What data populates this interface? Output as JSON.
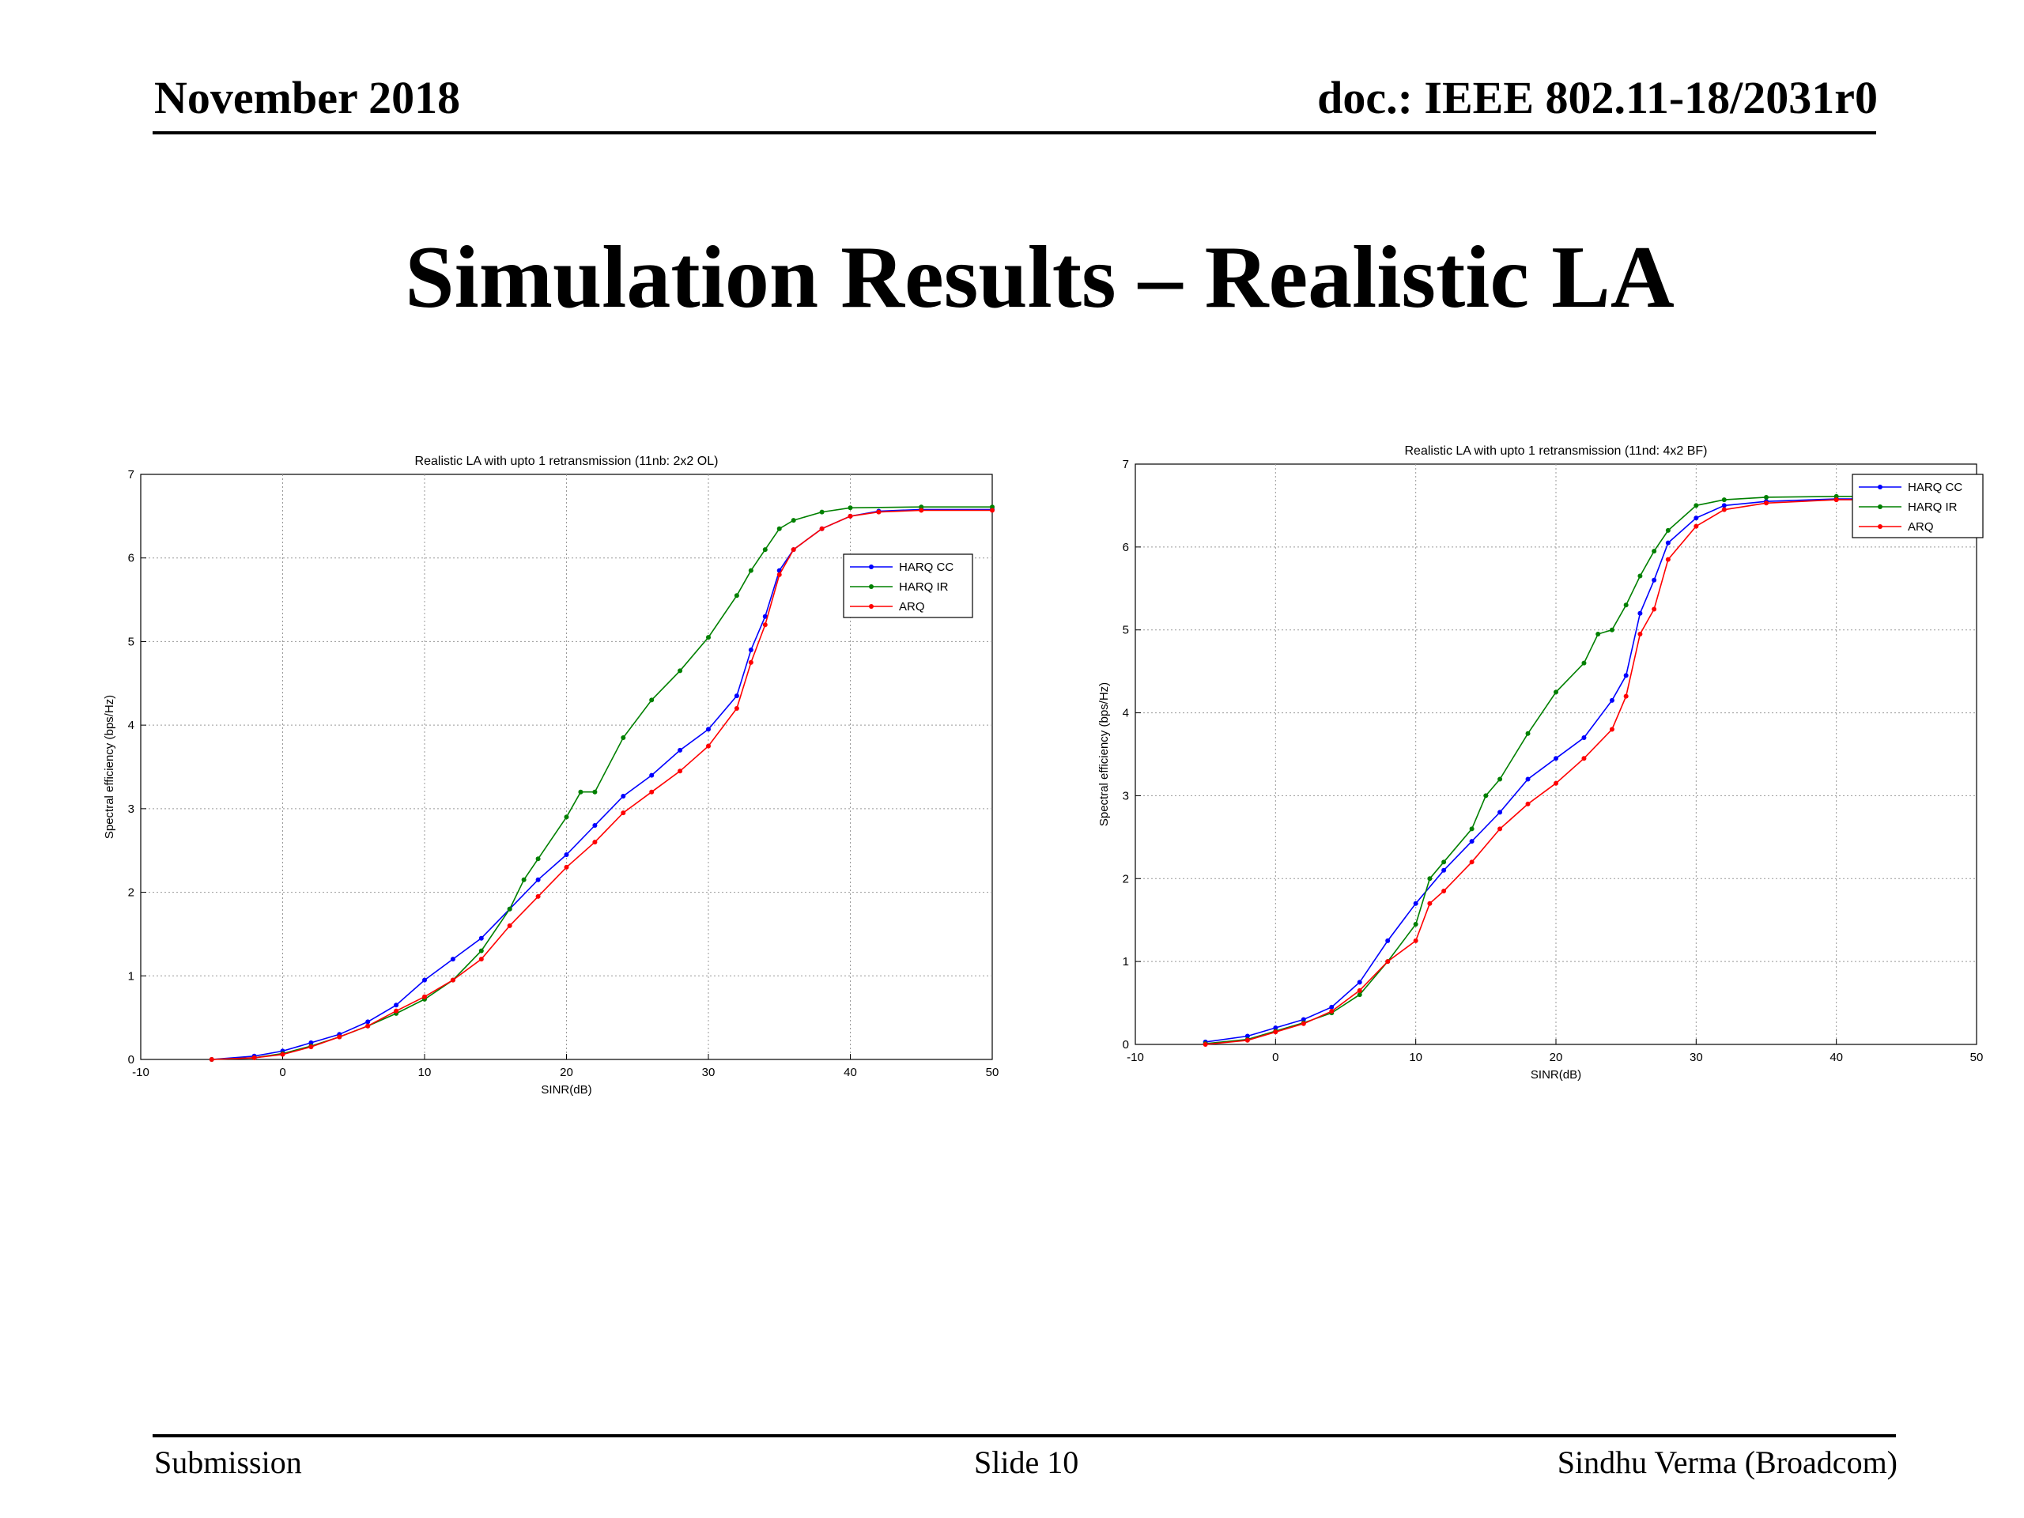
{
  "header": {
    "date": "November 2018",
    "doc": "doc.: IEEE 802.11-18/2031r0"
  },
  "slide_title": "Simulation Results – Realistic LA",
  "footer": {
    "left": "Submission",
    "center": "Slide 10",
    "right": "Sindhu Verma (Broadcom)"
  },
  "colors": {
    "HARQ CC": "#0000ff",
    "HARQ IR": "#008000",
    "ARQ": "#ff0000"
  },
  "chart_data": [
    {
      "type": "line",
      "title": "Realistic LA with upto 1 retransmission (11nb: 2x2 OL)",
      "xlabel": "SINR(dB)",
      "ylabel": "Spectral efficiency (bps/Hz)",
      "xlim": [
        -10,
        50
      ],
      "ylim": [
        0,
        7
      ],
      "xticks": [
        -10,
        0,
        10,
        20,
        30,
        40,
        50
      ],
      "yticks": [
        0,
        1,
        2,
        3,
        4,
        5,
        6,
        7
      ],
      "grid": true,
      "legend_position": "top-right",
      "series": [
        {
          "name": "HARQ CC",
          "points": [
            [
              -5,
              0
            ],
            [
              -2,
              0.04
            ],
            [
              0,
              0.1
            ],
            [
              2,
              0.2
            ],
            [
              4,
              0.3
            ],
            [
              6,
              0.45
            ],
            [
              8,
              0.65
            ],
            [
              10,
              0.95
            ],
            [
              12,
              1.2
            ],
            [
              14,
              1.45
            ],
            [
              16,
              1.8
            ],
            [
              18,
              2.15
            ],
            [
              20,
              2.45
            ],
            [
              22,
              2.8
            ],
            [
              24,
              3.15
            ],
            [
              26,
              3.4
            ],
            [
              28,
              3.7
            ],
            [
              30,
              3.95
            ],
            [
              32,
              4.35
            ],
            [
              33,
              4.9
            ],
            [
              34,
              5.3
            ],
            [
              35,
              5.85
            ],
            [
              36,
              6.1
            ],
            [
              38,
              6.35
            ],
            [
              40,
              6.5
            ],
            [
              42,
              6.56
            ],
            [
              45,
              6.58
            ],
            [
              50,
              6.58
            ]
          ]
        },
        {
          "name": "HARQ IR",
          "points": [
            [
              -5,
              0
            ],
            [
              -2,
              0.02
            ],
            [
              0,
              0.07
            ],
            [
              2,
              0.16
            ],
            [
              4,
              0.27
            ],
            [
              6,
              0.4
            ],
            [
              8,
              0.55
            ],
            [
              10,
              0.72
            ],
            [
              12,
              0.95
            ],
            [
              14,
              1.3
            ],
            [
              16,
              1.8
            ],
            [
              17,
              2.15
            ],
            [
              18,
              2.4
            ],
            [
              20,
              2.9
            ],
            [
              21,
              3.2
            ],
            [
              22,
              3.2
            ],
            [
              24,
              3.85
            ],
            [
              26,
              4.3
            ],
            [
              28,
              4.65
            ],
            [
              30,
              5.05
            ],
            [
              32,
              5.55
            ],
            [
              33,
              5.85
            ],
            [
              34,
              6.1
            ],
            [
              35,
              6.35
            ],
            [
              36,
              6.45
            ],
            [
              38,
              6.55
            ],
            [
              40,
              6.6
            ],
            [
              45,
              6.61
            ],
            [
              50,
              6.61
            ]
          ]
        },
        {
          "name": "ARQ",
          "points": [
            [
              -5,
              0
            ],
            [
              -2,
              0.02
            ],
            [
              0,
              0.06
            ],
            [
              2,
              0.15
            ],
            [
              4,
              0.27
            ],
            [
              6,
              0.4
            ],
            [
              8,
              0.58
            ],
            [
              10,
              0.75
            ],
            [
              12,
              0.95
            ],
            [
              14,
              1.2
            ],
            [
              16,
              1.6
            ],
            [
              18,
              1.95
            ],
            [
              20,
              2.3
            ],
            [
              22,
              2.6
            ],
            [
              24,
              2.95
            ],
            [
              26,
              3.2
            ],
            [
              28,
              3.45
            ],
            [
              30,
              3.75
            ],
            [
              32,
              4.2
            ],
            [
              33,
              4.75
            ],
            [
              34,
              5.2
            ],
            [
              35,
              5.8
            ],
            [
              36,
              6.1
            ],
            [
              38,
              6.35
            ],
            [
              40,
              6.5
            ],
            [
              42,
              6.55
            ],
            [
              45,
              6.57
            ],
            [
              50,
              6.57
            ]
          ]
        }
      ]
    },
    {
      "type": "line",
      "title": "Realistic LA with upto 1 retransmission (11nd: 4x2 BF)",
      "xlabel": "SINR(dB)",
      "ylabel": "Spectral efficiency (bps/Hz)",
      "xlim": [
        -10,
        50
      ],
      "ylim": [
        0,
        7
      ],
      "xticks": [
        -10,
        0,
        10,
        20,
        30,
        40,
        50
      ],
      "yticks": [
        0,
        1,
        2,
        3,
        4,
        5,
        6,
        7
      ],
      "grid": true,
      "legend_position": "top-right",
      "series": [
        {
          "name": "HARQ CC",
          "points": [
            [
              -5,
              0.03
            ],
            [
              -2,
              0.1
            ],
            [
              0,
              0.2
            ],
            [
              2,
              0.3
            ],
            [
              4,
              0.45
            ],
            [
              6,
              0.75
            ],
            [
              8,
              1.25
            ],
            [
              10,
              1.7
            ],
            [
              12,
              2.1
            ],
            [
              14,
              2.45
            ],
            [
              16,
              2.8
            ],
            [
              18,
              3.2
            ],
            [
              20,
              3.45
            ],
            [
              22,
              3.7
            ],
            [
              24,
              4.15
            ],
            [
              25,
              4.45
            ],
            [
              26,
              5.2
            ],
            [
              27,
              5.6
            ],
            [
              28,
              6.05
            ],
            [
              30,
              6.35
            ],
            [
              32,
              6.5
            ],
            [
              35,
              6.55
            ],
            [
              40,
              6.58
            ],
            [
              50,
              6.58
            ]
          ]
        },
        {
          "name": "HARQ IR",
          "points": [
            [
              -5,
              0.01
            ],
            [
              -2,
              0.06
            ],
            [
              0,
              0.16
            ],
            [
              2,
              0.26
            ],
            [
              4,
              0.38
            ],
            [
              6,
              0.6
            ],
            [
              8,
              1.0
            ],
            [
              10,
              1.45
            ],
            [
              11,
              2.0
            ],
            [
              12,
              2.2
            ],
            [
              14,
              2.6
            ],
            [
              15,
              3.0
            ],
            [
              16,
              3.2
            ],
            [
              18,
              3.75
            ],
            [
              20,
              4.25
            ],
            [
              22,
              4.6
            ],
            [
              23,
              4.95
            ],
            [
              24,
              5.0
            ],
            [
              25,
              5.3
            ],
            [
              26,
              5.65
            ],
            [
              27,
              5.95
            ],
            [
              28,
              6.2
            ],
            [
              30,
              6.5
            ],
            [
              32,
              6.57
            ],
            [
              35,
              6.6
            ],
            [
              40,
              6.61
            ],
            [
              50,
              6.61
            ]
          ]
        },
        {
          "name": "ARQ",
          "points": [
            [
              -5,
              0
            ],
            [
              -2,
              0.05
            ],
            [
              0,
              0.15
            ],
            [
              2,
              0.25
            ],
            [
              4,
              0.4
            ],
            [
              6,
              0.65
            ],
            [
              8,
              1.0
            ],
            [
              10,
              1.25
            ],
            [
              11,
              1.7
            ],
            [
              12,
              1.85
            ],
            [
              14,
              2.2
            ],
            [
              16,
              2.6
            ],
            [
              18,
              2.9
            ],
            [
              20,
              3.15
            ],
            [
              22,
              3.45
            ],
            [
              24,
              3.8
            ],
            [
              25,
              4.2
            ],
            [
              26,
              4.95
            ],
            [
              27,
              5.25
            ],
            [
              28,
              5.85
            ],
            [
              30,
              6.25
            ],
            [
              32,
              6.45
            ],
            [
              35,
              6.53
            ],
            [
              40,
              6.57
            ],
            [
              50,
              6.57
            ]
          ]
        }
      ]
    }
  ]
}
